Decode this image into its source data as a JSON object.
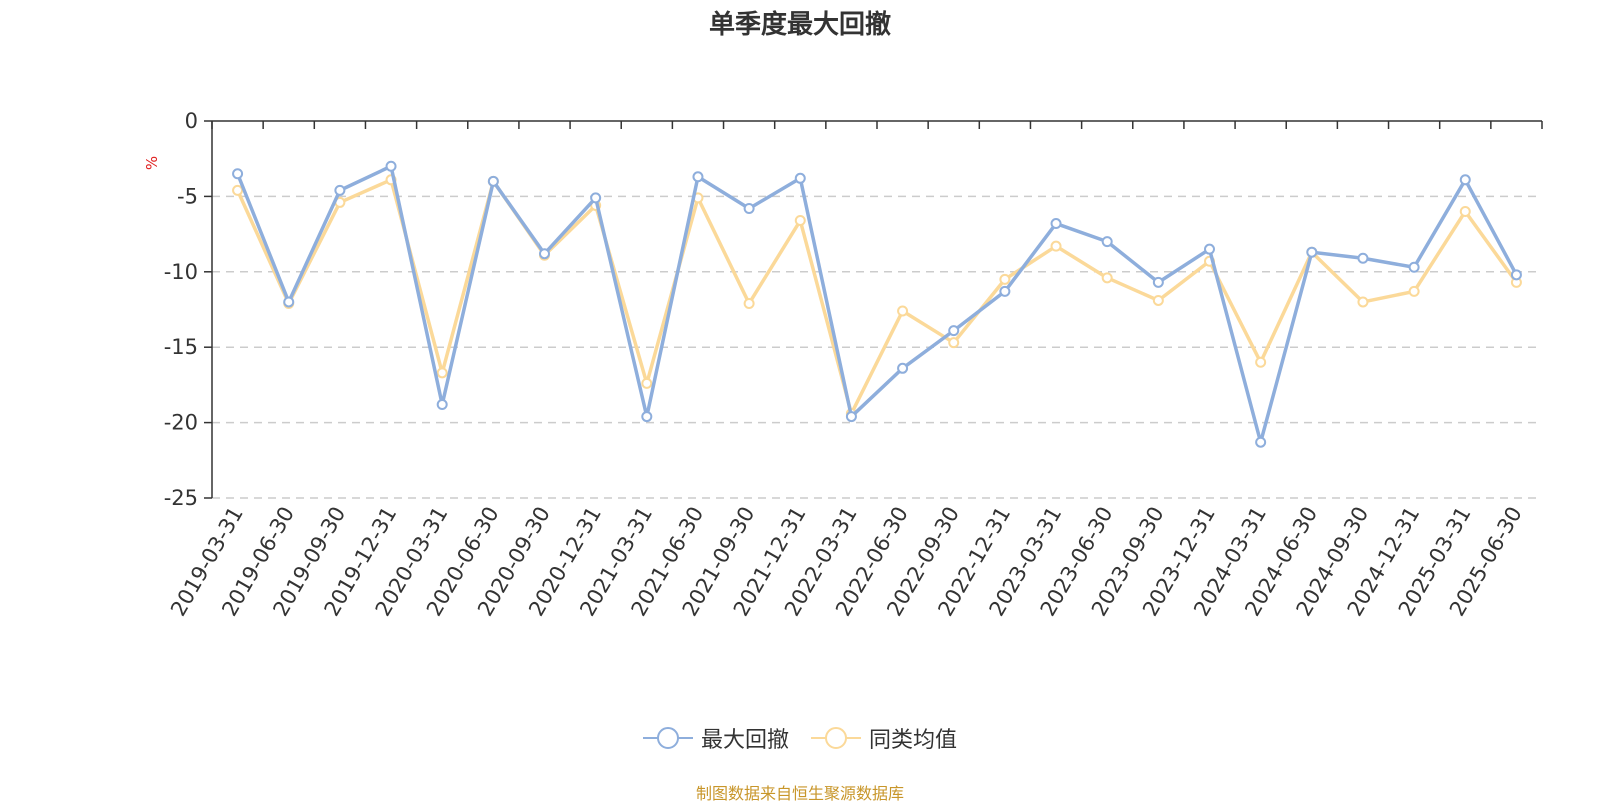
{
  "chart_data": {
    "type": "line",
    "title": "单季度最大回撤",
    "ylabel": "%",
    "ylim": [
      -25,
      0
    ],
    "yticks": [
      0,
      -5,
      -10,
      -15,
      -20,
      -25
    ],
    "grid": true,
    "legend_position": "bottom-center",
    "categories": [
      "2019-03-31",
      "2019-06-30",
      "2019-09-30",
      "2019-12-31",
      "2020-03-31",
      "2020-06-30",
      "2020-09-30",
      "2020-12-31",
      "2021-03-31",
      "2021-06-30",
      "2021-09-30",
      "2021-12-31",
      "2022-03-31",
      "2022-06-30",
      "2022-09-30",
      "2022-12-31",
      "2023-03-31",
      "2023-06-30",
      "2023-09-30",
      "2023-12-31",
      "2024-03-31",
      "2024-06-30",
      "2024-09-30",
      "2024-12-31",
      "2025-03-31",
      "2025-06-30"
    ],
    "series": [
      {
        "name": "最大回撤",
        "color": "#8eaedc",
        "values": [
          -3.5,
          -12.0,
          -4.6,
          -3.0,
          -18.8,
          -4.0,
          -8.8,
          -5.1,
          -19.6,
          -3.7,
          -5.8,
          -3.8,
          -19.6,
          -16.4,
          -13.9,
          -11.3,
          -6.8,
          -8.0,
          -10.7,
          -8.5,
          -21.3,
          -8.7,
          -9.1,
          -9.7,
          -3.9,
          -10.2
        ]
      },
      {
        "name": "同类均值",
        "color": "#fbd999",
        "values": [
          -4.6,
          -12.1,
          -5.4,
          -3.9,
          -16.7,
          -4.0,
          -8.9,
          -5.6,
          -17.4,
          -5.1,
          -12.1,
          -6.6,
          -19.4,
          -12.6,
          -14.7,
          -10.5,
          -8.3,
          -10.4,
          -11.9,
          -9.3,
          -16.0,
          -8.7,
          -12.0,
          -11.3,
          -6.0,
          -10.7
        ]
      }
    ]
  },
  "footer": "制图数据来自恒生聚源数据库"
}
